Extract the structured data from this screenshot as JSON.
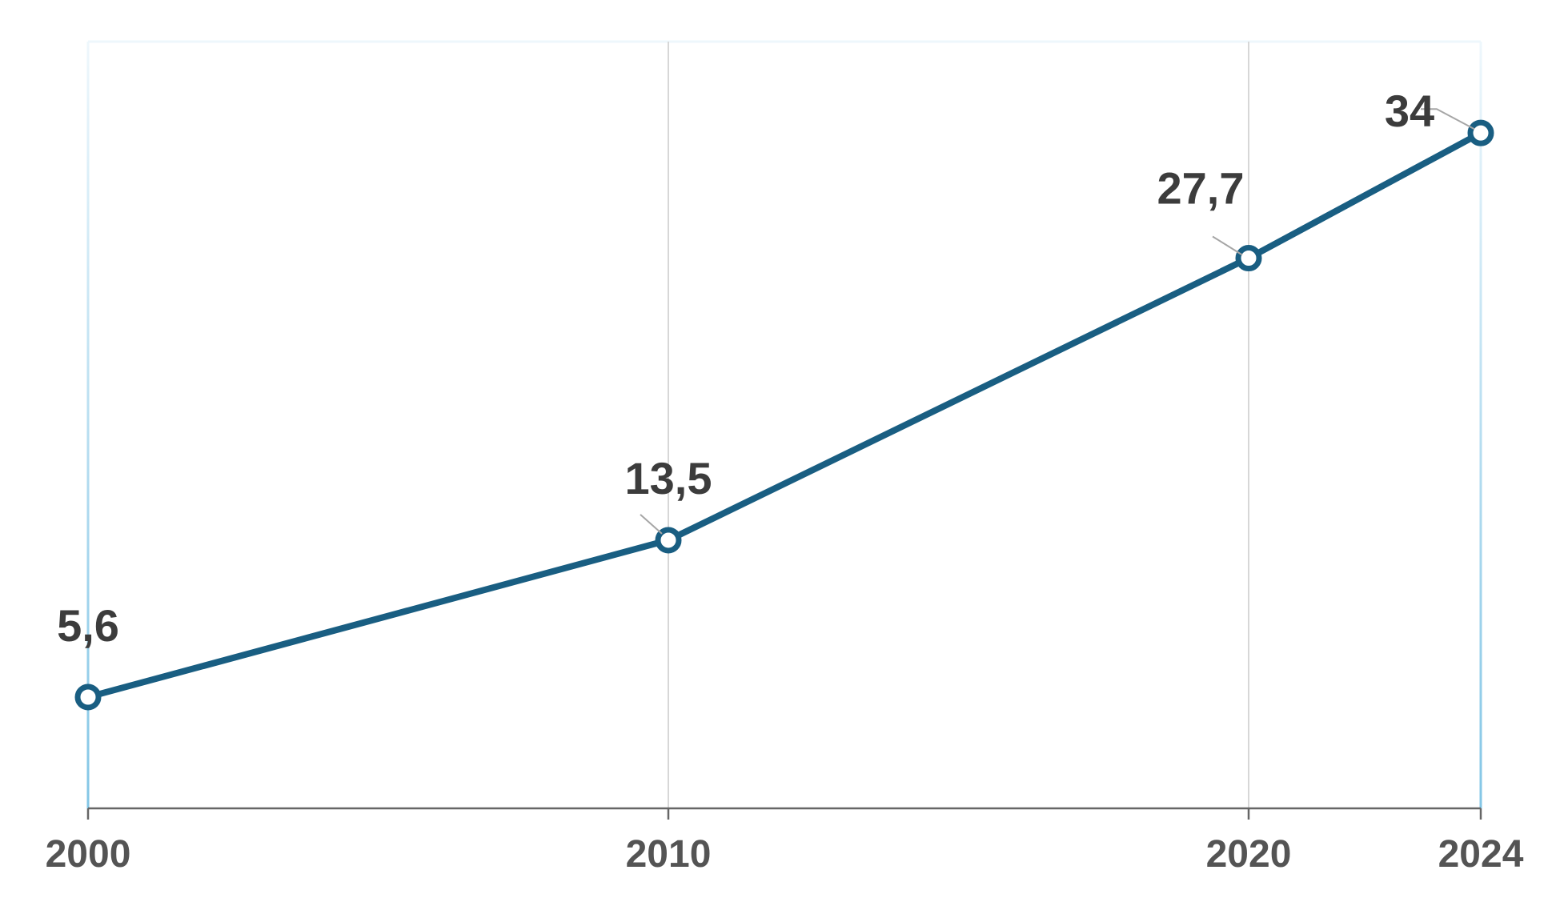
{
  "chart_data": {
    "type": "line",
    "title": "",
    "xlabel": "",
    "ylabel": "",
    "categories": [
      "2000",
      "2010",
      "2020",
      "2024"
    ],
    "x": [
      2000,
      2010,
      2020,
      2024
    ],
    "series": [
      {
        "values": [
          5.6,
          13.5,
          27.7,
          34
        ],
        "labels": [
          "5,6",
          "13,5",
          "27,7",
          "34"
        ]
      }
    ],
    "xlim": [
      2000,
      2024
    ],
    "ylim": [
      0,
      38.6
    ],
    "grid": "vertical",
    "legend": "none"
  },
  "colors": {
    "line": "#195e82",
    "marker_fill": "#ffffff",
    "gridline": "#d7d7d7",
    "edge_gradient_top": "#eef7fc",
    "edge_gradient_bottom": "#83c6e6",
    "axis": "#666666",
    "tick_text": "#545454",
    "label_text": "#3c3c3c",
    "leader": "#a6a6a6"
  }
}
